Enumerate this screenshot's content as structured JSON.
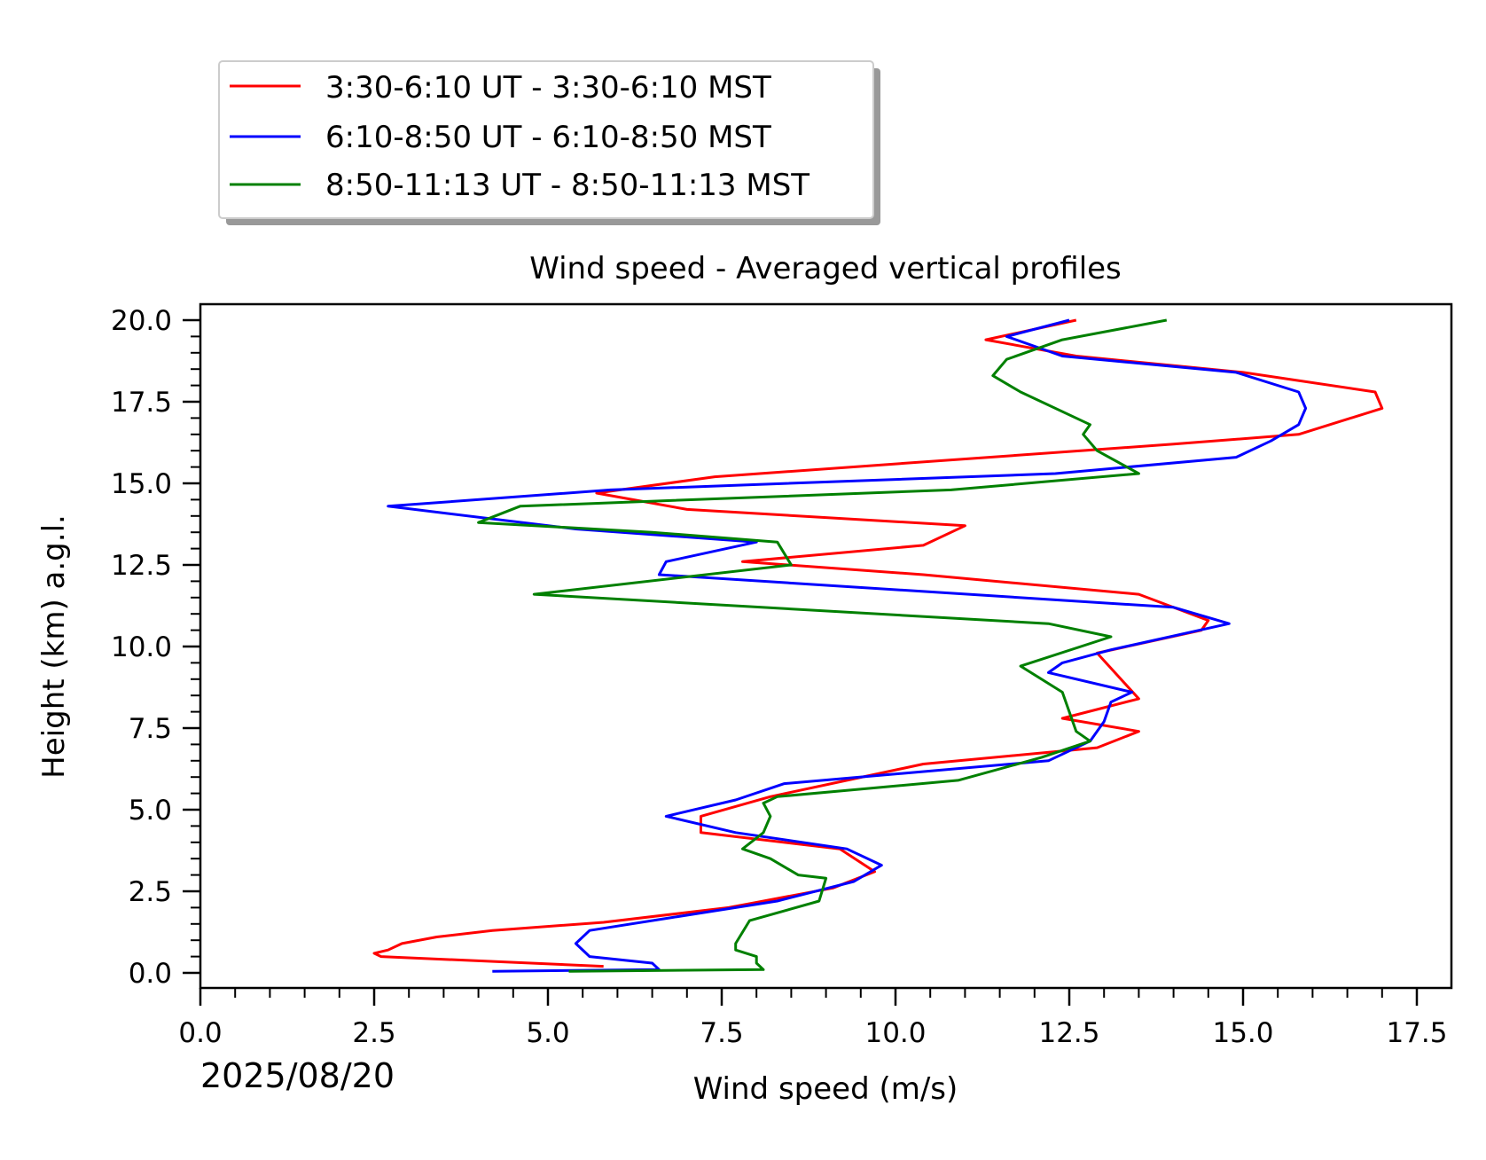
{
  "chart_data": {
    "type": "line",
    "title": "Wind speed - Averaged vertical profiles",
    "xlabel": "Wind speed (m/s)",
    "ylabel": "Height (km) a.g.l.",
    "date_label": "2025/08/20",
    "xlim": [
      0.0,
      17.8
    ],
    "ylim": [
      -0.5,
      20.5
    ],
    "x_ticks": [
      "0.0",
      "2.5",
      "5.0",
      "7.5",
      "10.0",
      "12.5",
      "15.0",
      "17.5"
    ],
    "y_ticks": [
      "0.0",
      "2.5",
      "5.0",
      "7.5",
      "10.0",
      "12.5",
      "15.0",
      "17.5",
      "20.0"
    ],
    "grid": false,
    "legend_position": "above-left",
    "series": [
      {
        "name": "3:30-6:10 UT - 3:30-6:10 MST",
        "color": "#ff0000",
        "points": [
          [
            5.8,
            0.2
          ],
          [
            2.6,
            0.5
          ],
          [
            2.5,
            0.6
          ],
          [
            2.7,
            0.7
          ],
          [
            2.9,
            0.9
          ],
          [
            3.4,
            1.1
          ],
          [
            4.2,
            1.3
          ],
          [
            5.8,
            1.55
          ],
          [
            7.6,
            2.0
          ],
          [
            9.1,
            2.6
          ],
          [
            9.7,
            3.1
          ],
          [
            9.2,
            3.8
          ],
          [
            7.2,
            4.3
          ],
          [
            7.2,
            4.8
          ],
          [
            8.2,
            5.4
          ],
          [
            10.4,
            6.4
          ],
          [
            12.9,
            6.9
          ],
          [
            13.5,
            7.4
          ],
          [
            12.4,
            7.8
          ],
          [
            13.5,
            8.4
          ],
          [
            12.9,
            9.8
          ],
          [
            14.4,
            10.5
          ],
          [
            14.5,
            10.8
          ],
          [
            13.5,
            11.6
          ],
          [
            10.4,
            12.2
          ],
          [
            7.8,
            12.6
          ],
          [
            10.4,
            13.1
          ],
          [
            11.0,
            13.7
          ],
          [
            7.0,
            14.2
          ],
          [
            5.7,
            14.7
          ],
          [
            7.4,
            15.2
          ],
          [
            14.0,
            16.2
          ],
          [
            15.8,
            16.5
          ],
          [
            17.0,
            17.3
          ],
          [
            16.9,
            17.8
          ],
          [
            15.0,
            18.4
          ],
          [
            12.6,
            18.9
          ],
          [
            11.3,
            19.4
          ],
          [
            12.6,
            20.0
          ]
        ]
      },
      {
        "name": "6:10-8:50 UT - 6:10-8:50 MST",
        "color": "#0000ff",
        "points": [
          [
            4.2,
            0.05
          ],
          [
            6.6,
            0.1
          ],
          [
            6.5,
            0.3
          ],
          [
            5.6,
            0.5
          ],
          [
            5.4,
            0.9
          ],
          [
            5.6,
            1.3
          ],
          [
            6.8,
            1.7
          ],
          [
            8.3,
            2.2
          ],
          [
            9.4,
            2.8
          ],
          [
            9.8,
            3.3
          ],
          [
            9.3,
            3.8
          ],
          [
            7.7,
            4.3
          ],
          [
            6.7,
            4.8
          ],
          [
            7.7,
            5.3
          ],
          [
            8.4,
            5.8
          ],
          [
            12.2,
            6.5
          ],
          [
            12.8,
            7.1
          ],
          [
            13.0,
            7.7
          ],
          [
            13.1,
            8.3
          ],
          [
            13.4,
            8.6
          ],
          [
            12.2,
            9.2
          ],
          [
            12.4,
            9.5
          ],
          [
            13.1,
            9.9
          ],
          [
            14.8,
            10.7
          ],
          [
            14.0,
            11.2
          ],
          [
            6.6,
            12.2
          ],
          [
            6.7,
            12.6
          ],
          [
            8.0,
            13.2
          ],
          [
            5.4,
            13.6
          ],
          [
            2.7,
            14.3
          ],
          [
            5.9,
            14.8
          ],
          [
            12.3,
            15.3
          ],
          [
            14.9,
            15.8
          ],
          [
            15.4,
            16.3
          ],
          [
            15.8,
            16.8
          ],
          [
            15.9,
            17.3
          ],
          [
            15.8,
            17.8
          ],
          [
            14.9,
            18.4
          ],
          [
            12.4,
            18.9
          ],
          [
            11.6,
            19.5
          ],
          [
            12.5,
            20.0
          ]
        ]
      },
      {
        "name": "8:50-11:13 UT - 8:50-11:13 MST",
        "color": "#008000",
        "points": [
          [
            5.3,
            0.05
          ],
          [
            8.1,
            0.1
          ],
          [
            8.0,
            0.3
          ],
          [
            8.0,
            0.5
          ],
          [
            7.7,
            0.7
          ],
          [
            7.7,
            0.9
          ],
          [
            7.9,
            1.6
          ],
          [
            8.9,
            2.2
          ],
          [
            9.0,
            2.9
          ],
          [
            8.6,
            3.0
          ],
          [
            8.2,
            3.5
          ],
          [
            7.8,
            3.8
          ],
          [
            8.1,
            4.3
          ],
          [
            8.2,
            4.8
          ],
          [
            8.1,
            5.2
          ],
          [
            8.3,
            5.4
          ],
          [
            10.9,
            5.9
          ],
          [
            12.1,
            6.6
          ],
          [
            12.8,
            7.1
          ],
          [
            12.6,
            7.4
          ],
          [
            12.5,
            8.0
          ],
          [
            12.4,
            8.6
          ],
          [
            11.8,
            9.4
          ],
          [
            13.1,
            10.3
          ],
          [
            12.2,
            10.7
          ],
          [
            4.8,
            11.6
          ],
          [
            8.5,
            12.5
          ],
          [
            8.3,
            13.2
          ],
          [
            6.5,
            13.5
          ],
          [
            4.0,
            13.8
          ],
          [
            4.6,
            14.3
          ],
          [
            10.8,
            14.8
          ],
          [
            13.5,
            15.3
          ],
          [
            12.9,
            16.0
          ],
          [
            12.7,
            16.5
          ],
          [
            12.8,
            16.8
          ],
          [
            11.8,
            17.8
          ],
          [
            11.4,
            18.3
          ],
          [
            11.6,
            18.8
          ],
          [
            12.4,
            19.4
          ],
          [
            13.9,
            20.0
          ]
        ]
      }
    ]
  }
}
